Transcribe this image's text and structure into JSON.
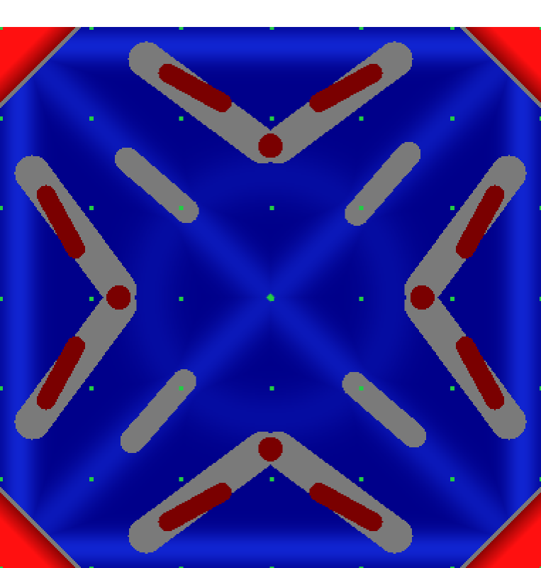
{
  "colors": {
    "background_white": "#ffffff",
    "field_dark_blue": "#00008a",
    "field_bright_blue": "#1630e8",
    "gray_contour": "#7a7a7a",
    "dark_red_region": "#7a0000",
    "bright_red_corner": "#ff1010",
    "grid_dot_green": "#22cc44"
  },
  "grid": {
    "rows": 7,
    "cols": 7
  },
  "center_marker": {
    "shape": "diamond"
  }
}
